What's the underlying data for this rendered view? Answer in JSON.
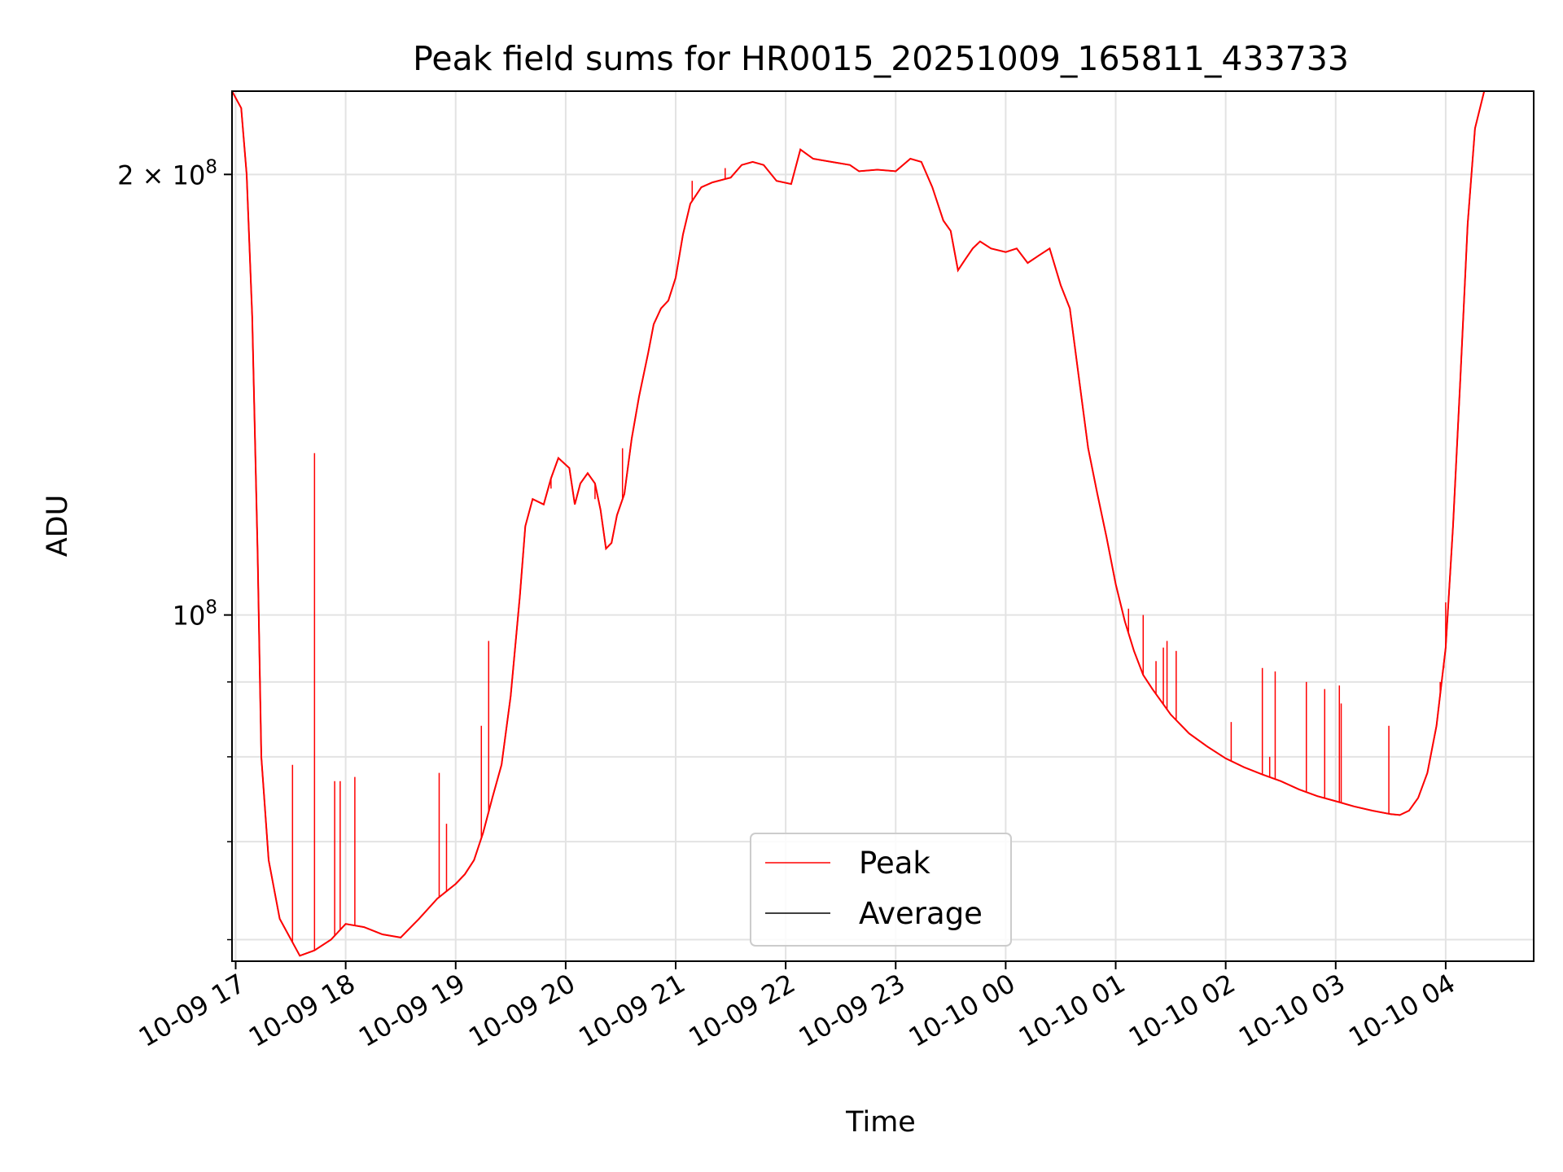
{
  "chart_data": {
    "type": "line",
    "title": "Peak field sums for HR0015_20251009_165811_433733",
    "xlabel": "Time",
    "ylabel": "ADU",
    "yscale": "log",
    "ylim": [
      58000000,
      228000000
    ],
    "xlim": [
      "2025-10-09T16:58",
      "2025-10-10T04:48"
    ],
    "grid": true,
    "legend_position": "lower center",
    "x_ticks": [
      {
        "t": "2025-10-09T17:00",
        "label": "10-09 17"
      },
      {
        "t": "2025-10-09T18:00",
        "label": "10-09 18"
      },
      {
        "t": "2025-10-09T19:00",
        "label": "10-09 19"
      },
      {
        "t": "2025-10-09T20:00",
        "label": "10-09 20"
      },
      {
        "t": "2025-10-09T21:00",
        "label": "10-09 21"
      },
      {
        "t": "2025-10-09T22:00",
        "label": "10-09 22"
      },
      {
        "t": "2025-10-09T23:00",
        "label": "10-09 23"
      },
      {
        "t": "2025-10-10T00:00",
        "label": "10-10 00"
      },
      {
        "t": "2025-10-10T01:00",
        "label": "10-10 01"
      },
      {
        "t": "2025-10-10T02:00",
        "label": "10-10 02"
      },
      {
        "t": "2025-10-10T03:00",
        "label": "10-10 03"
      },
      {
        "t": "2025-10-10T04:00",
        "label": "10-10 04"
      }
    ],
    "y_major_ticks": [
      {
        "value": 100000000,
        "mantissa": "",
        "exp": "8"
      },
      {
        "value": 200000000,
        "mantissa": "2 × ",
        "exp": "8"
      }
    ],
    "y_minor_ticks": [
      60000000,
      70000000,
      80000000,
      90000000
    ],
    "series": [
      {
        "name": "Average",
        "color": "#000000",
        "points": [
          [
            "2025-10-09T16:58",
            228000000
          ],
          [
            "2025-10-09T17:03",
            222000000
          ],
          [
            "2025-10-09T17:06",
            200000000
          ],
          [
            "2025-10-09T17:09",
            160000000
          ],
          [
            "2025-10-09T17:12",
            110000000
          ],
          [
            "2025-10-09T17:14",
            80000000
          ],
          [
            "2025-10-09T17:18",
            68000000
          ],
          [
            "2025-10-09T17:24",
            62000000
          ],
          [
            "2025-10-09T17:35",
            58500000
          ],
          [
            "2025-10-09T17:43",
            59000000
          ],
          [
            "2025-10-09T17:52",
            60000000
          ],
          [
            "2025-10-09T18:00",
            61500000
          ],
          [
            "2025-10-09T18:10",
            61200000
          ],
          [
            "2025-10-09T18:20",
            60500000
          ],
          [
            "2025-10-09T18:30",
            60200000
          ],
          [
            "2025-10-09T18:40",
            62000000
          ],
          [
            "2025-10-09T18:50",
            64000000
          ],
          [
            "2025-10-09T19:00",
            65500000
          ],
          [
            "2025-10-09T19:05",
            66500000
          ],
          [
            "2025-10-09T19:10",
            68000000
          ],
          [
            "2025-10-09T19:15",
            71000000
          ],
          [
            "2025-10-09T19:20",
            75000000
          ],
          [
            "2025-10-09T19:25",
            79000000
          ],
          [
            "2025-10-09T19:30",
            88000000
          ],
          [
            "2025-10-09T19:35",
            103000000
          ],
          [
            "2025-10-09T19:38",
            115000000
          ],
          [
            "2025-10-09T19:42",
            120000000
          ],
          [
            "2025-10-09T19:48",
            119000000
          ],
          [
            "2025-10-09T19:52",
            124000000
          ],
          [
            "2025-10-09T19:56",
            128000000
          ],
          [
            "2025-10-09T20:02",
            126000000
          ],
          [
            "2025-10-09T20:05",
            119000000
          ],
          [
            "2025-10-09T20:08",
            123000000
          ],
          [
            "2025-10-09T20:12",
            125000000
          ],
          [
            "2025-10-09T20:16",
            123000000
          ],
          [
            "2025-10-09T20:19",
            118000000
          ],
          [
            "2025-10-09T20:22",
            111000000
          ],
          [
            "2025-10-09T20:25",
            112000000
          ],
          [
            "2025-10-09T20:28",
            117000000
          ],
          [
            "2025-10-09T20:32",
            121000000
          ],
          [
            "2025-10-09T20:36",
            132000000
          ],
          [
            "2025-10-09T20:40",
            141000000
          ],
          [
            "2025-10-09T20:45",
            151000000
          ],
          [
            "2025-10-09T20:48",
            158000000
          ],
          [
            "2025-10-09T20:52",
            162000000
          ],
          [
            "2025-10-09T20:56",
            164000000
          ],
          [
            "2025-10-09T21:00",
            170000000
          ],
          [
            "2025-10-09T21:04",
            182000000
          ],
          [
            "2025-10-09T21:08",
            191000000
          ],
          [
            "2025-10-09T21:14",
            196000000
          ],
          [
            "2025-10-09T21:20",
            197500000
          ],
          [
            "2025-10-09T21:30",
            199000000
          ],
          [
            "2025-10-09T21:36",
            203000000
          ],
          [
            "2025-10-09T21:42",
            204000000
          ],
          [
            "2025-10-09T21:48",
            203000000
          ],
          [
            "2025-10-09T21:55",
            198000000
          ],
          [
            "2025-10-09T22:03",
            197000000
          ],
          [
            "2025-10-09T22:08",
            208000000
          ],
          [
            "2025-10-09T22:15",
            205000000
          ],
          [
            "2025-10-09T22:25",
            204000000
          ],
          [
            "2025-10-09T22:35",
            203000000
          ],
          [
            "2025-10-09T22:40",
            201000000
          ],
          [
            "2025-10-09T22:50",
            201500000
          ],
          [
            "2025-10-09T23:00",
            201000000
          ],
          [
            "2025-10-09T23:08",
            205000000
          ],
          [
            "2025-10-09T23:14",
            204000000
          ],
          [
            "2025-10-09T23:20",
            196000000
          ],
          [
            "2025-10-09T23:26",
            186000000
          ],
          [
            "2025-10-09T23:30",
            183000000
          ],
          [
            "2025-10-09T23:34",
            172000000
          ],
          [
            "2025-10-09T23:38",
            175000000
          ],
          [
            "2025-10-09T23:42",
            178000000
          ],
          [
            "2025-10-09T23:46",
            180000000
          ],
          [
            "2025-10-09T23:52",
            178000000
          ],
          [
            "2025-10-10T00:00",
            177000000
          ],
          [
            "2025-10-10T00:06",
            178000000
          ],
          [
            "2025-10-10T00:12",
            174000000
          ],
          [
            "2025-10-10T00:18",
            176000000
          ],
          [
            "2025-10-10T00:24",
            178000000
          ],
          [
            "2025-10-10T00:30",
            168000000
          ],
          [
            "2025-10-10T00:35",
            162000000
          ],
          [
            "2025-10-10T00:40",
            145000000
          ],
          [
            "2025-10-10T00:45",
            130000000
          ],
          [
            "2025-10-10T00:50",
            121000000
          ],
          [
            "2025-10-10T00:55",
            113000000
          ],
          [
            "2025-10-10T01:00",
            105000000
          ],
          [
            "2025-10-10T01:05",
            99000000
          ],
          [
            "2025-10-10T01:10",
            94500000
          ],
          [
            "2025-10-10T01:15",
            91000000
          ],
          [
            "2025-10-10T01:20",
            89000000
          ],
          [
            "2025-10-10T01:30",
            85500000
          ],
          [
            "2025-10-10T01:40",
            83000000
          ],
          [
            "2025-10-10T01:50",
            81300000
          ],
          [
            "2025-10-10T02:00",
            79800000
          ],
          [
            "2025-10-10T02:10",
            78700000
          ],
          [
            "2025-10-10T02:20",
            77800000
          ],
          [
            "2025-10-10T02:30",
            77000000
          ],
          [
            "2025-10-10T02:40",
            76000000
          ],
          [
            "2025-10-10T02:50",
            75200000
          ],
          [
            "2025-10-10T03:00",
            74600000
          ],
          [
            "2025-10-10T03:10",
            74000000
          ],
          [
            "2025-10-10T03:20",
            73500000
          ],
          [
            "2025-10-10T03:30",
            73100000
          ],
          [
            "2025-10-10T03:35",
            73000000
          ],
          [
            "2025-10-10T03:40",
            73500000
          ],
          [
            "2025-10-10T03:45",
            75000000
          ],
          [
            "2025-10-10T03:50",
            78000000
          ],
          [
            "2025-10-10T03:55",
            84000000
          ],
          [
            "2025-10-10T04:00",
            95000000
          ],
          [
            "2025-10-10T04:04",
            115000000
          ],
          [
            "2025-10-10T04:08",
            145000000
          ],
          [
            "2025-10-10T04:12",
            185000000
          ],
          [
            "2025-10-10T04:16",
            215000000
          ],
          [
            "2025-10-10T04:21",
            228000000
          ],
          [
            "2025-10-10T04:48",
            228000000
          ]
        ]
      },
      {
        "name": "Peak",
        "color": "#ff0000",
        "spikes": [
          [
            "2025-10-09T17:31",
            79000000
          ],
          [
            "2025-10-09T17:43",
            129000000
          ],
          [
            "2025-10-09T17:54",
            77000000
          ],
          [
            "2025-10-09T17:57",
            77000000
          ],
          [
            "2025-10-09T18:05",
            77500000
          ],
          [
            "2025-10-09T18:51",
            78000000
          ],
          [
            "2025-10-09T18:55",
            72000000
          ],
          [
            "2025-10-09T19:14",
            84000000
          ],
          [
            "2025-10-09T19:18",
            96000000
          ],
          [
            "2025-10-09T19:52",
            122000000
          ],
          [
            "2025-10-09T20:16",
            120000000
          ],
          [
            "2025-10-09T20:31",
            130000000
          ],
          [
            "2025-10-09T21:09",
            198000000
          ],
          [
            "2025-10-09T21:27",
            202000000
          ],
          [
            "2025-10-10T01:07",
            101000000
          ],
          [
            "2025-10-10T01:15",
            100000000
          ],
          [
            "2025-10-10T01:22",
            93000000
          ],
          [
            "2025-10-10T01:26",
            95000000
          ],
          [
            "2025-10-10T01:28",
            96000000
          ],
          [
            "2025-10-10T01:33",
            94500000
          ],
          [
            "2025-10-10T02:03",
            84500000
          ],
          [
            "2025-10-10T02:20",
            92000000
          ],
          [
            "2025-10-10T02:24",
            80000000
          ],
          [
            "2025-10-10T02:27",
            91500000
          ],
          [
            "2025-10-10T02:44",
            90000000
          ],
          [
            "2025-10-10T02:54",
            89000000
          ],
          [
            "2025-10-10T03:02",
            89500000
          ],
          [
            "2025-10-10T03:03",
            87000000
          ],
          [
            "2025-10-10T03:29",
            84000000
          ],
          [
            "2025-10-10T03:50",
            78000000
          ],
          [
            "2025-10-10T03:57",
            90000000
          ],
          [
            "2025-10-10T03:59",
            92000000
          ],
          [
            "2025-10-10T04:00",
            102000000
          ]
        ]
      }
    ]
  }
}
